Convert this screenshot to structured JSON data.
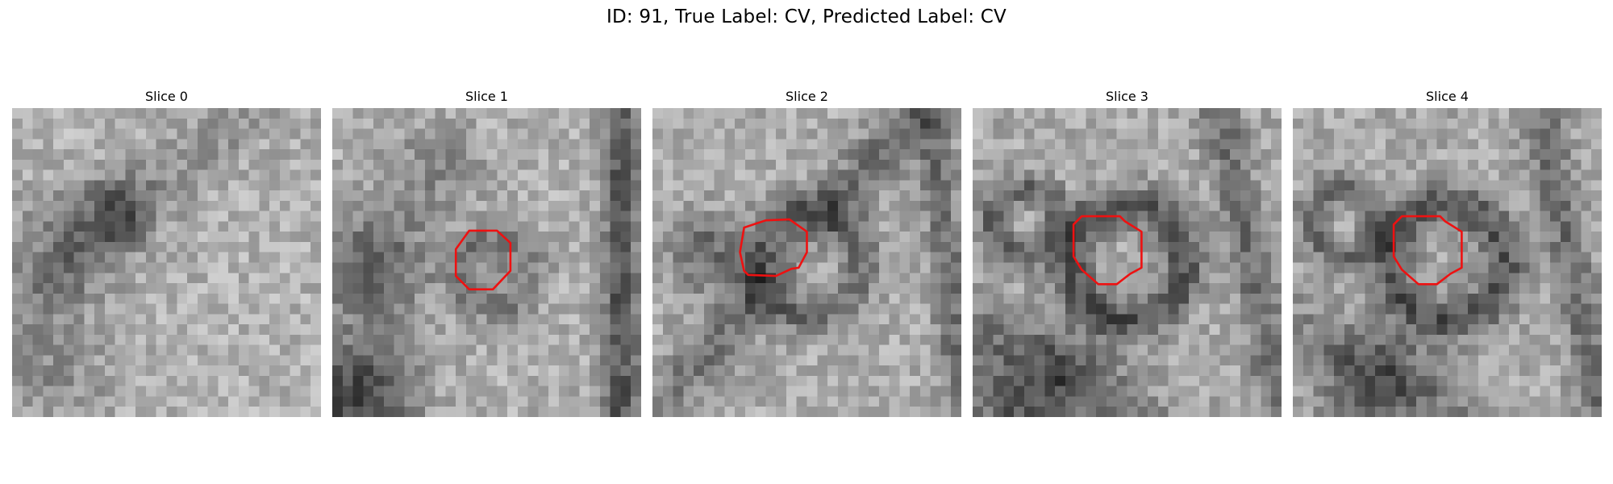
{
  "figure": {
    "title": "ID: 91, True Label: CV, Predicted Label: CV"
  },
  "slices": [
    {
      "title": "Slice 0",
      "has_contour": false
    },
    {
      "title": "Slice 1",
      "has_contour": true
    },
    {
      "title": "Slice 2",
      "has_contour": true
    },
    {
      "title": "Slice 3",
      "has_contour": true
    },
    {
      "title": "Slice 4",
      "has_contour": true
    }
  ],
  "colors": {
    "contour": "#ee1111",
    "colormap": "gray"
  }
}
